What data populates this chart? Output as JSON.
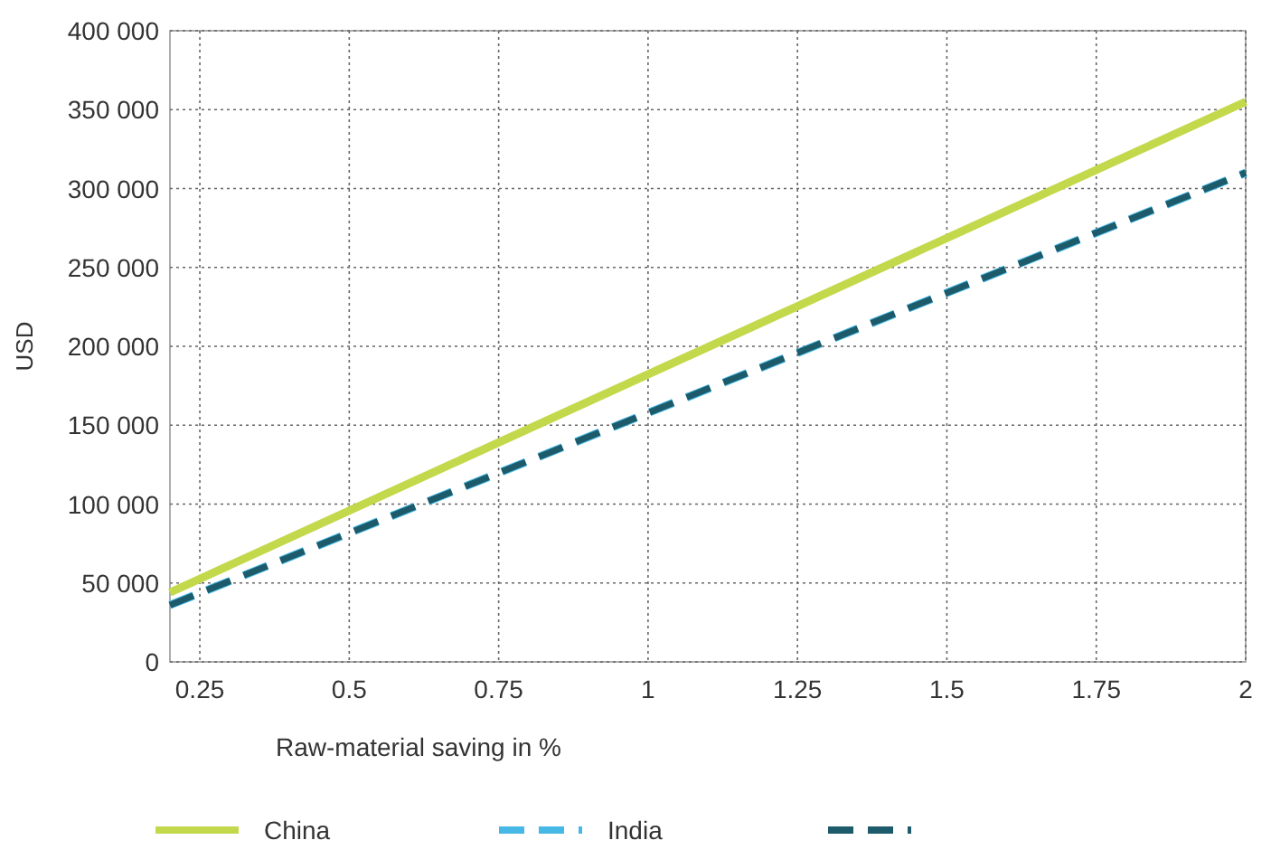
{
  "chart_data": {
    "type": "line",
    "xlabel": "Raw-material saving in %",
    "ylabel": "USD",
    "xlim": [
      0.2,
      2
    ],
    "ylim": [
      0,
      400000
    ],
    "xticks": [
      0.25,
      0.5,
      0.75,
      1,
      1.25,
      1.5,
      1.75,
      2
    ],
    "yticks": [
      {
        "value": 0,
        "label": "0"
      },
      {
        "value": 50000,
        "label": "50 000"
      },
      {
        "value": 100000,
        "label": "100 000"
      },
      {
        "value": 150000,
        "label": "150 000"
      },
      {
        "value": 200000,
        "label": "200 000"
      },
      {
        "value": 250000,
        "label": "250 000"
      },
      {
        "value": 300000,
        "label": "300 000"
      },
      {
        "value": 350000,
        "label": "350 000"
      },
      {
        "value": 400000,
        "label": "400 000"
      }
    ],
    "grid": true,
    "legend": "bottom",
    "x": [
      0.2,
      2
    ],
    "series": [
      {
        "name": "China",
        "color": "#c3d94b",
        "values": [
          44000,
          355000
        ],
        "line_style": "solid"
      },
      {
        "name": "India",
        "color": "#45b8e6",
        "values": [
          36000,
          310000
        ],
        "line_style": "dashed"
      },
      {
        "color": "#1d5a6a",
        "values": [
          36000,
          310000
        ],
        "line_style": "dashed"
      }
    ]
  }
}
